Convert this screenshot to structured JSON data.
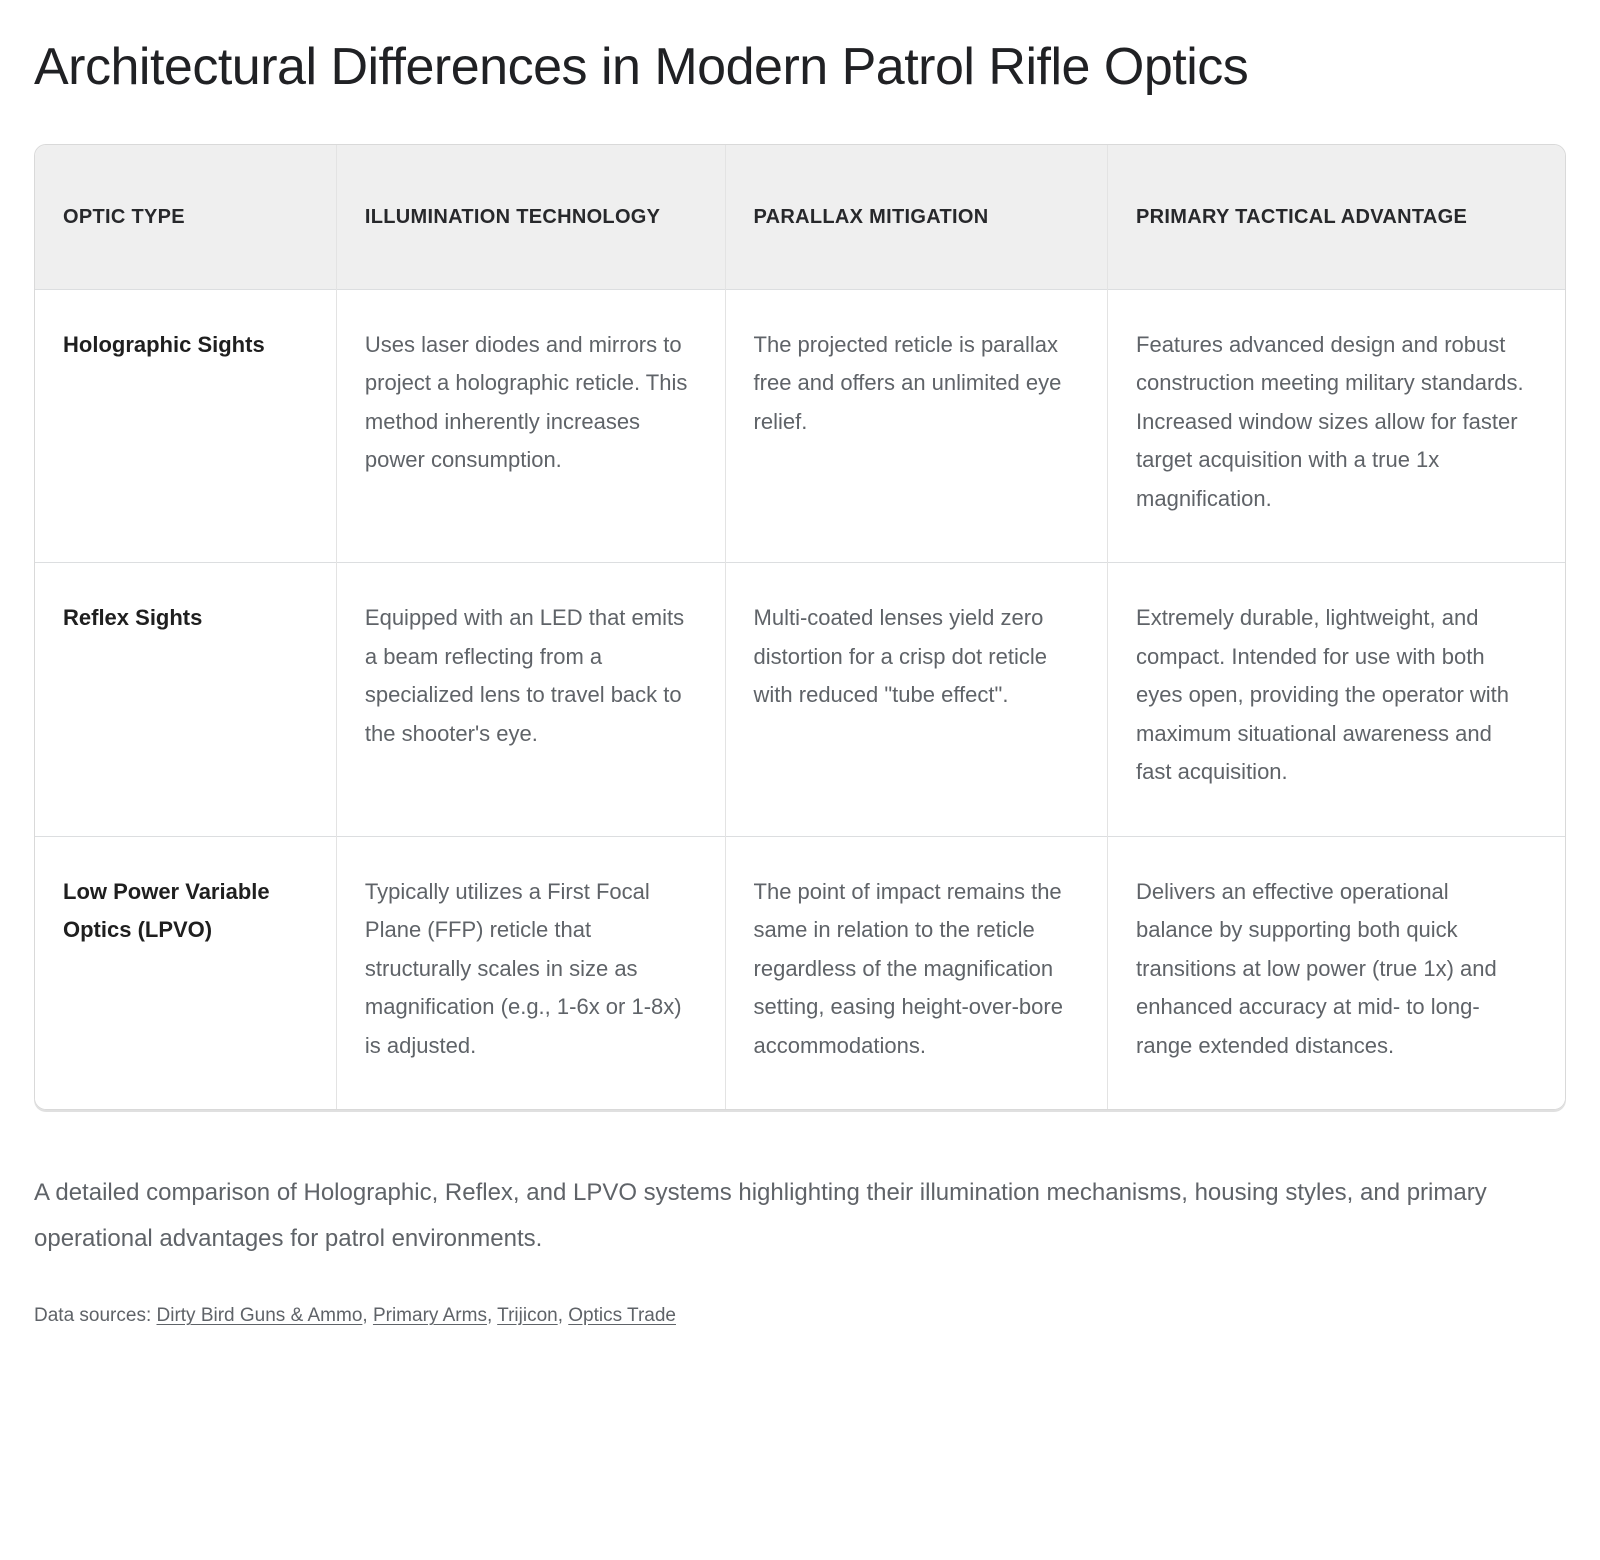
{
  "chart_data": {
    "type": "table",
    "title": "Architectural Differences in Modern Patrol Rifle Optics",
    "columns": [
      "Optic Type",
      "Illumination Technology",
      "Parallax Mitigation",
      "Primary Tactical Advantage"
    ],
    "rows": [
      [
        "Holographic Sights",
        "Uses laser diodes and mirrors to project a holographic reticle. This method inherently increases power consumption.",
        "The projected reticle is parallax free and offers an unlimited eye relief.",
        "Features advanced design and robust construction meeting military standards. Increased window sizes allow for faster target acquisition with a true 1x magnification."
      ],
      [
        "Reflex Sights",
        "Equipped with an LED that emits a beam reflecting from a specialized lens to travel back to the shooter's eye.",
        "Multi-coated lenses yield zero distortion for a crisp dot reticle with reduced \"tube effect\".",
        "Extremely durable, lightweight, and compact. Intended for use with both eyes open, providing the operator with maximum situational awareness and fast acquisition."
      ],
      [
        "Low Power Variable Optics (LPVO)",
        "Typically utilizes a First Focal Plane (FFP) reticle that structurally scales in size as magnification (e.g., 1-6x or 1-8x) is adjusted.",
        "The point of impact remains the same in relation to the reticle regardless of the magnification setting, easing height-over-bore accommodations.",
        "Delivers an effective operational balance by supporting both quick transitions at low power (true 1x) and enhanced accuracy at mid- to long-range extended distances."
      ]
    ],
    "caption": "A detailed comparison of Holographic, Reflex, and LPVO systems highlighting their illumination mechanisms, housing styles, and primary operational advantages for patrol environments.",
    "sources_label": "Data sources: ",
    "sources_separator": ", ",
    "sources": [
      "Dirty Bird Guns & Ammo",
      "Primary Arms",
      "Trijicon",
      "Optics Trade"
    ],
    "layout_hints": {
      "legend": "none",
      "grid": "table borders on",
      "header_background": "#efefef",
      "body_text_color": "#5f6368",
      "title_color": "#202124",
      "border_color": "#d9d9d9"
    }
  }
}
